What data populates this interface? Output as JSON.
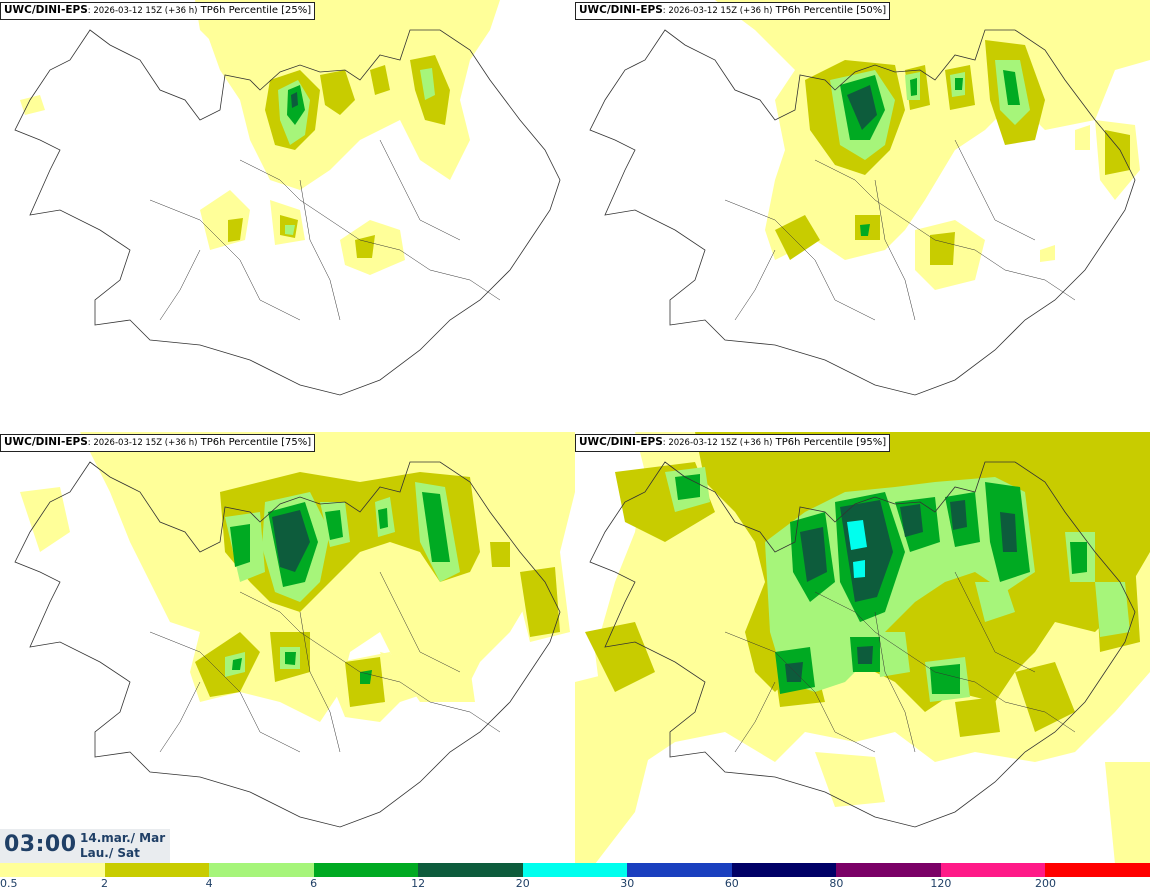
{
  "panels": [
    {
      "model": "UWC/DINI-EPS",
      "meta": ": 2026-03-12 15Z (+36 h)",
      "field": " TP6h Percentile [25%]"
    },
    {
      "model": "UWC/DINI-EPS",
      "meta": ": 2026-03-12 15Z (+36 h)",
      "field": " TP6h Percentile [50%]"
    },
    {
      "model": "UWC/DINI-EPS",
      "meta": ": 2026-03-12 15Z (+36 h)",
      "field": " TP6h Percentile [75%]"
    },
    {
      "model": "UWC/DINI-EPS",
      "meta": ": 2026-03-12 15Z (+36 h)",
      "field": " TP6h Percentile [95%]"
    }
  ],
  "valid_time": {
    "time": "03:00",
    "date_line1": "14.mar./ Mar",
    "date_line2": "Lau./ Sat"
  },
  "legend": {
    "colors": [
      "#ffff99",
      "#c8cc00",
      "#a6f57a",
      "#00aa22",
      "#0d5c3c",
      "#00ffee",
      "#1a3fbf",
      "#000066",
      "#7a0066",
      "#ff1a88",
      "#ff0000"
    ],
    "ticks": [
      "0.5",
      "2",
      "4",
      "6",
      "12",
      "20",
      "30",
      "60",
      "80",
      "120",
      "200"
    ]
  },
  "colors": {
    "land_fill": "#ffffff",
    "coast": "#333333",
    "lvl1": "#ffff99",
    "lvl2": "#c8cc00",
    "lvl3": "#a6f57a",
    "lvl4": "#00aa22",
    "lvl5": "#0d5c3c",
    "lvl6": "#00ffee"
  }
}
